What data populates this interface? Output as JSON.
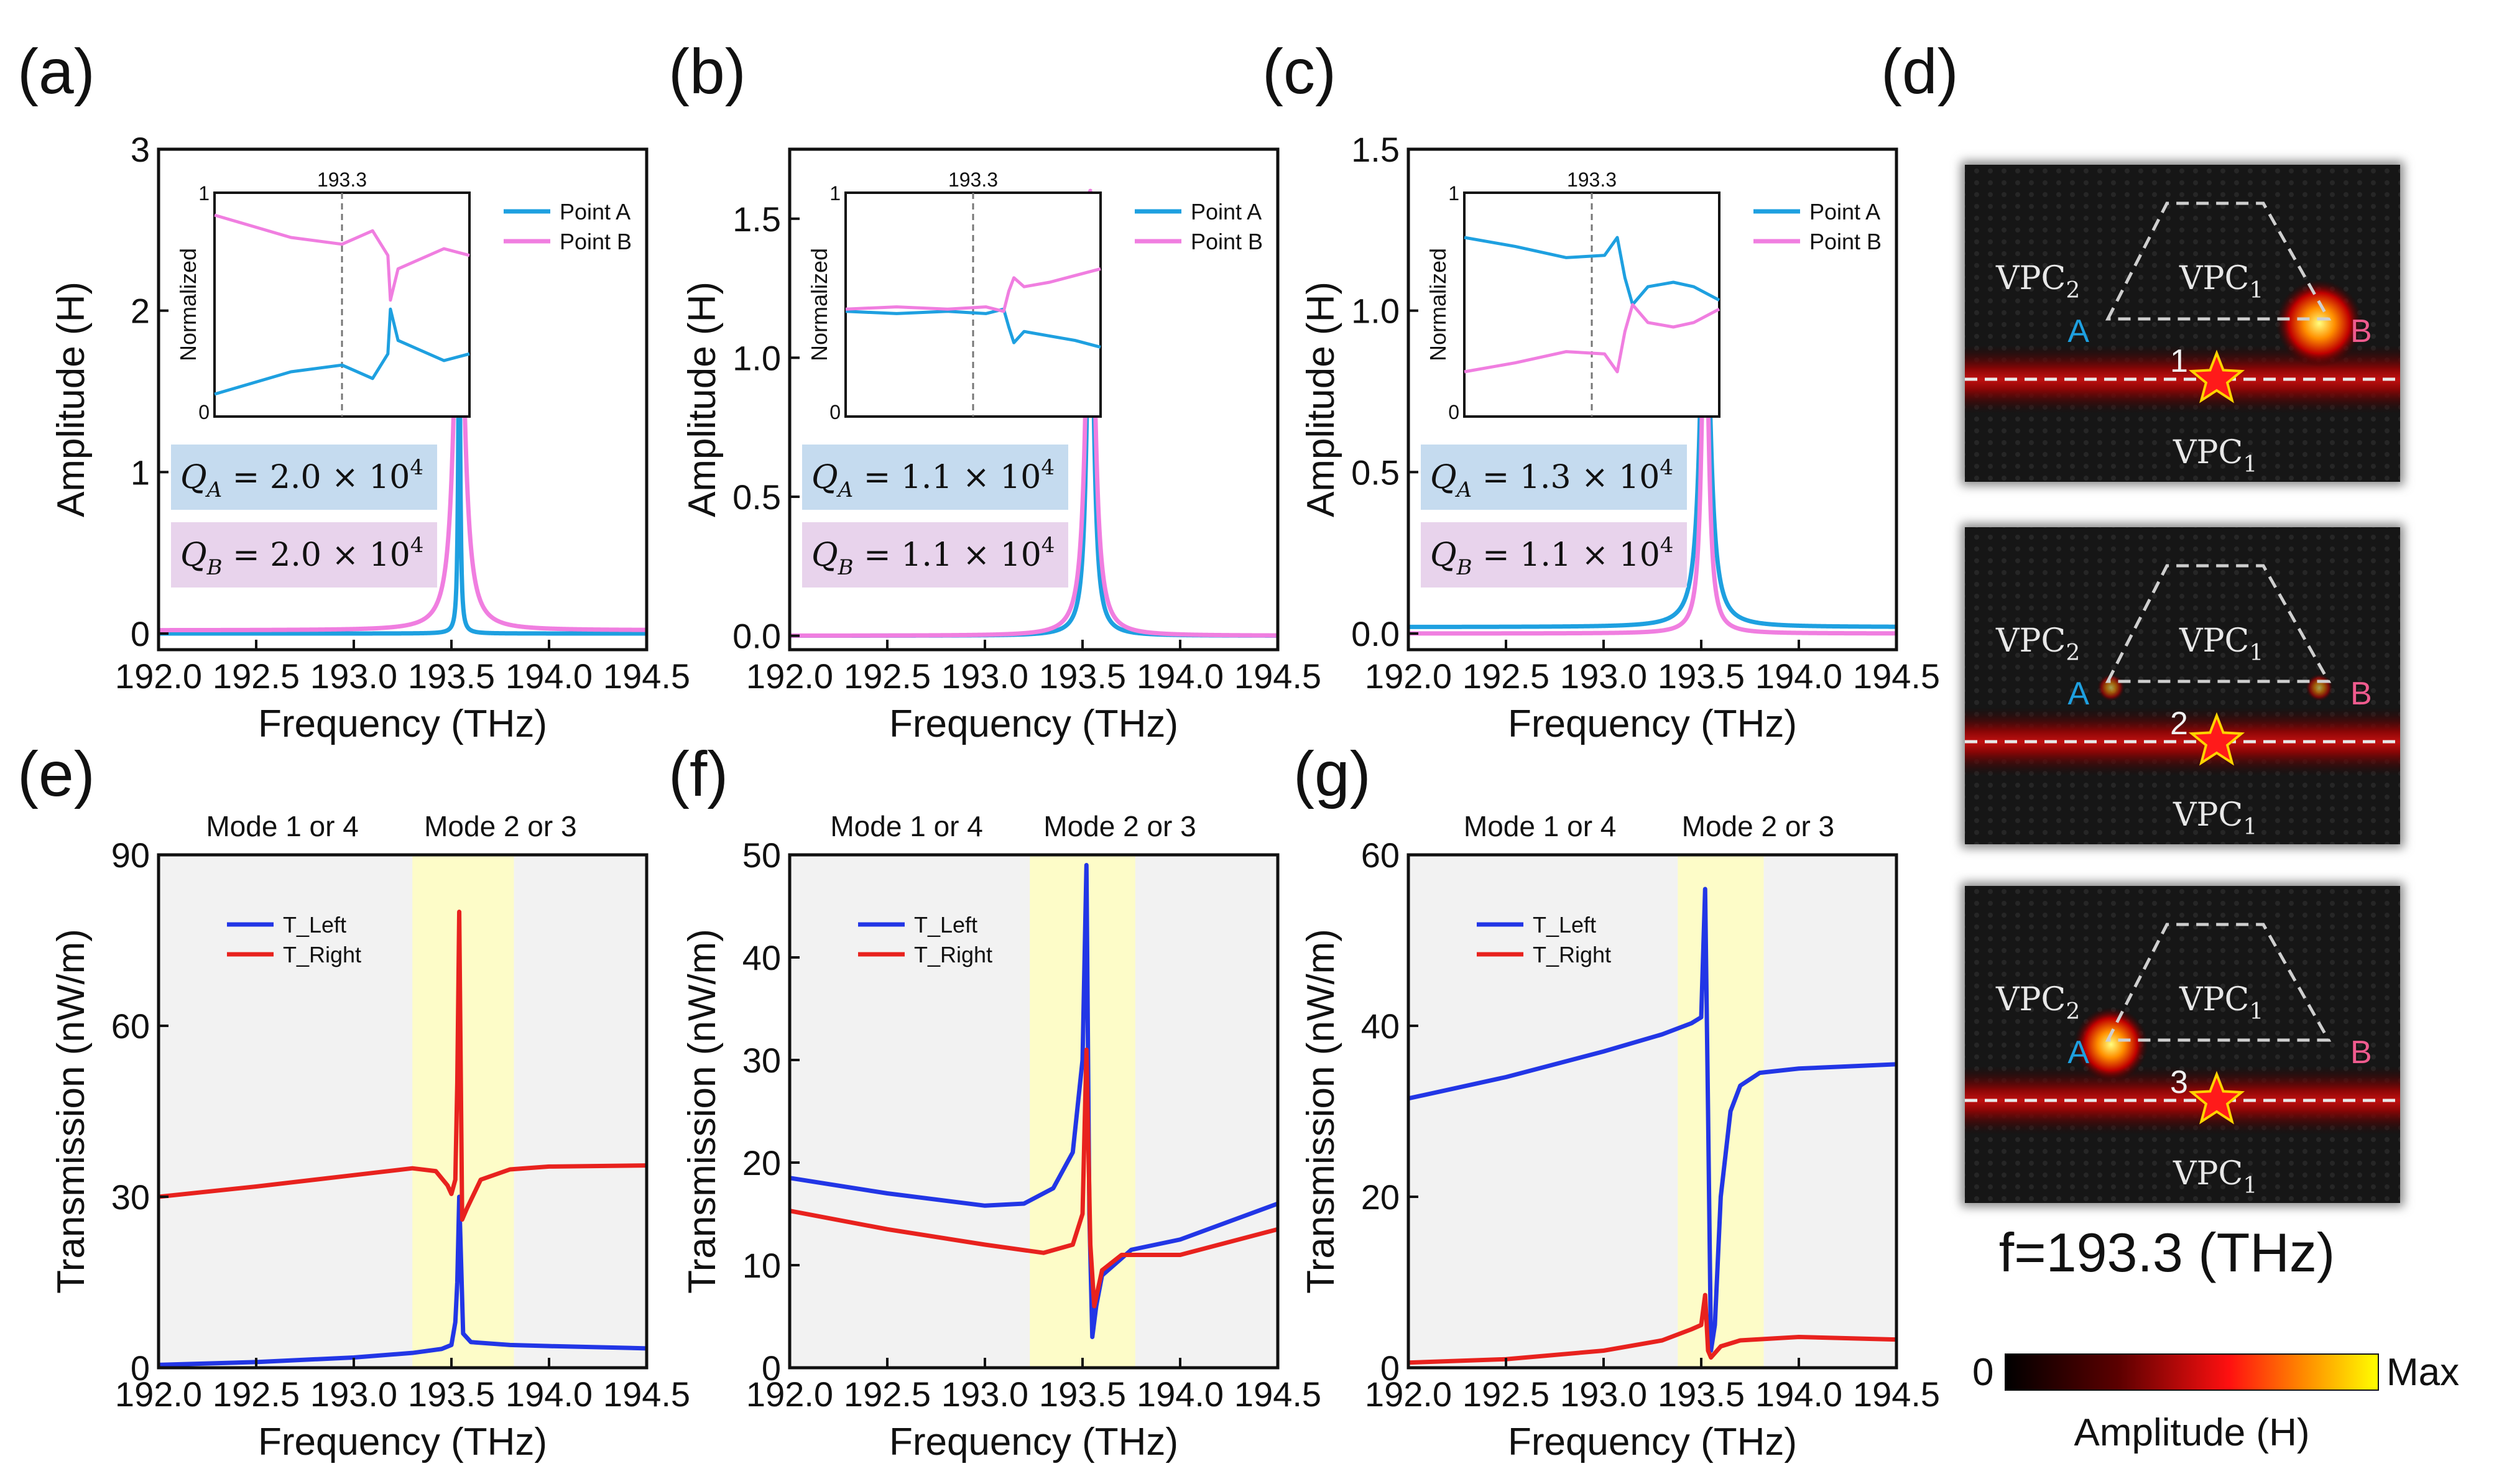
{
  "panel_labels": {
    "a": "(a)",
    "b": "(b)",
    "c": "(c)",
    "d": "(d)",
    "e": "(e)",
    "f": "(f)",
    "g": "(g)"
  },
  "colors": {
    "point_a": "#1ea0e0",
    "point_b": "#f07ee0",
    "t_left": "#2236e6",
    "t_right": "#e8221e",
    "q_a_box": "#c5dbef",
    "q_b_box": "#e8d3ec",
    "mode_band": "#fdfcc8",
    "bg_band": "#f2f2f2",
    "field_bg": "#161616"
  },
  "chart_data": [
    {
      "id": "a",
      "type": "line",
      "xlabel": "Frequency (THz)",
      "ylabel": "Amplitude (H)",
      "xlim": [
        192.0,
        194.5
      ],
      "ylim": [
        -0.1,
        3.0
      ],
      "xticks": [
        "192.0",
        "192.5",
        "193.0",
        "193.5",
        "194.0",
        "194.5"
      ],
      "yticks": [
        {
          "v": 0,
          "t": "0"
        },
        {
          "v": 1,
          "t": "1"
        },
        {
          "v": 2,
          "t": "2"
        },
        {
          "v": 3,
          "t": "3"
        }
      ],
      "legend": [
        "Point A",
        "Point B"
      ],
      "series": [
        {
          "name": "Point A",
          "f0": 193.54,
          "w": 0.006,
          "peak": 2.05,
          "base": 0.0
        },
        {
          "name": "Point B",
          "f0": 193.54,
          "w": 0.03,
          "peak": 2.6,
          "base": 0.02
        }
      ],
      "q_a": "Q_A = 2.0 × 10^4",
      "q_b": "Q_B = 2.0 × 10^4",
      "q_a_val": "2.0",
      "q_b_val": "2.0",
      "inset": {
        "ylabel": "Normalized",
        "yticks": [
          "0",
          "1"
        ],
        "marker": "193.3",
        "series": [
          {
            "name": "Point A",
            "x": [
              0,
              0.12,
              0.3,
              0.5,
              0.62,
              0.68,
              0.69,
              0.72,
              0.8,
              0.9,
              1.0
            ],
            "y": [
              0.1,
              0.14,
              0.2,
              0.23,
              0.17,
              0.28,
              0.48,
              0.34,
              0.3,
              0.25,
              0.28
            ]
          },
          {
            "name": "Point B",
            "x": [
              0,
              0.12,
              0.3,
              0.5,
              0.62,
              0.68,
              0.69,
              0.72,
              0.8,
              0.9,
              1.0
            ],
            "y": [
              0.9,
              0.86,
              0.8,
              0.77,
              0.83,
              0.72,
              0.52,
              0.66,
              0.7,
              0.75,
              0.72
            ]
          }
        ]
      }
    },
    {
      "id": "b",
      "type": "line",
      "xlabel": "Frequency (THz)",
      "ylabel": "Amplitude (H)",
      "xlim": [
        192.0,
        194.5
      ],
      "ylim": [
        -0.05,
        1.75
      ],
      "xticks": [
        "192.0",
        "192.5",
        "193.0",
        "193.5",
        "194.0",
        "194.5"
      ],
      "yticks": [
        {
          "v": 0,
          "t": "0.0"
        },
        {
          "v": 0.5,
          "t": "0.5"
        },
        {
          "v": 1.0,
          "t": "1.0"
        },
        {
          "v": 1.5,
          "t": "1.5"
        }
      ],
      "legend": [
        "Point A",
        "Point B"
      ],
      "series": [
        {
          "name": "Point A",
          "f0": 193.54,
          "w": 0.02,
          "peak": 1.45,
          "base": 0.0
        },
        {
          "name": "Point B",
          "f0": 193.54,
          "w": 0.026,
          "peak": 1.6,
          "base": 0.0
        }
      ],
      "q_a": "Q_A = 1.1 × 10^4",
      "q_b": "Q_B = 1.1 × 10^4",
      "q_a_val": "1.1",
      "q_b_val": "1.1",
      "inset": {
        "ylabel": "Normalized",
        "yticks": [
          "0",
          "1"
        ],
        "marker": "193.3",
        "series": [
          {
            "name": "Point A",
            "x": [
              0,
              0.2,
              0.4,
              0.55,
              0.62,
              0.64,
              0.66,
              0.7,
              0.8,
              0.9,
              1.0
            ],
            "y": [
              0.47,
              0.46,
              0.47,
              0.46,
              0.48,
              0.4,
              0.33,
              0.38,
              0.36,
              0.34,
              0.31
            ]
          },
          {
            "name": "Point B",
            "x": [
              0,
              0.2,
              0.4,
              0.55,
              0.62,
              0.64,
              0.66,
              0.7,
              0.8,
              0.9,
              1.0
            ],
            "y": [
              0.48,
              0.49,
              0.48,
              0.49,
              0.47,
              0.56,
              0.62,
              0.58,
              0.6,
              0.63,
              0.66
            ]
          }
        ]
      }
    },
    {
      "id": "c",
      "type": "line",
      "xlabel": "Frequency (THz)",
      "ylabel": "Amplitude (H)",
      "xlim": [
        192.0,
        194.5
      ],
      "ylim": [
        -0.05,
        1.5
      ],
      "xticks": [
        "192.0",
        "192.5",
        "193.0",
        "193.5",
        "194.0",
        "194.5"
      ],
      "yticks": [
        {
          "v": 0,
          "t": "0.0"
        },
        {
          "v": 0.5,
          "t": "0.5"
        },
        {
          "v": 1.0,
          "t": "1.0"
        },
        {
          "v": 1.5,
          "t": "1.5"
        }
      ],
      "legend": [
        "Point A",
        "Point B"
      ],
      "series": [
        {
          "name": "Point A",
          "f0": 193.52,
          "w": 0.028,
          "peak": 1.28,
          "base": 0.02
        },
        {
          "name": "Point B",
          "f0": 193.52,
          "w": 0.02,
          "peak": 1.14,
          "base": 0.0
        }
      ],
      "q_a": "Q_A = 1.3 × 10^4",
      "q_b": "Q_B = 1.1 × 10^4",
      "q_a_val": "1.3",
      "q_b_val": "1.1",
      "inset": {
        "ylabel": "Normalized",
        "yticks": [
          "0",
          "1"
        ],
        "marker": "193.3",
        "series": [
          {
            "name": "Point A",
            "x": [
              0,
              0.2,
              0.4,
              0.55,
              0.6,
              0.63,
              0.66,
              0.72,
              0.82,
              0.9,
              1.0
            ],
            "y": [
              0.8,
              0.76,
              0.71,
              0.72,
              0.8,
              0.62,
              0.5,
              0.58,
              0.6,
              0.58,
              0.52
            ]
          },
          {
            "name": "Point B",
            "x": [
              0,
              0.2,
              0.4,
              0.55,
              0.6,
              0.63,
              0.66,
              0.72,
              0.82,
              0.9,
              1.0
            ],
            "y": [
              0.2,
              0.24,
              0.29,
              0.28,
              0.2,
              0.38,
              0.5,
              0.42,
              0.4,
              0.42,
              0.48
            ]
          }
        ]
      }
    },
    {
      "id": "e",
      "type": "line",
      "xlabel": "Frequency (THz)",
      "ylabel": "Transmission (nW/m)",
      "xlim": [
        192.0,
        194.5
      ],
      "ylim": [
        0,
        90
      ],
      "xticks": [
        "192.0",
        "192.5",
        "193.0",
        "193.5",
        "194.0",
        "194.5"
      ],
      "yticks": [
        {
          "v": 0,
          "t": "0"
        },
        {
          "v": 30,
          "t": "30"
        },
        {
          "v": 60,
          "t": "60"
        },
        {
          "v": 90,
          "t": "90"
        }
      ],
      "legend": [
        "T_Left",
        "T_Right"
      ],
      "mode_labels": [
        "Mode 1 or 4",
        "Mode 2 or 3"
      ],
      "band": [
        193.3,
        193.82
      ],
      "series": [
        {
          "name": "T_Left",
          "x": [
            192.0,
            192.5,
            193.0,
            193.3,
            193.45,
            193.5,
            193.52,
            193.53,
            193.54,
            193.56,
            193.6,
            193.8,
            194.0,
            194.5
          ],
          "y": [
            0.5,
            1.0,
            1.8,
            2.6,
            3.3,
            4.0,
            8.0,
            15.0,
            30.0,
            6.0,
            4.5,
            4.0,
            3.8,
            3.4
          ]
        },
        {
          "name": "T_Right",
          "x": [
            192.0,
            192.5,
            193.0,
            193.3,
            193.42,
            193.48,
            193.5,
            193.52,
            193.53,
            193.54,
            193.555,
            193.58,
            193.65,
            193.8,
            194.0,
            194.5
          ],
          "y": [
            30.0,
            31.8,
            33.8,
            35.0,
            34.5,
            32.0,
            30.5,
            33.0,
            50.0,
            80.0,
            26.0,
            28.0,
            33.0,
            34.8,
            35.3,
            35.5
          ]
        }
      ]
    },
    {
      "id": "f",
      "type": "line",
      "xlabel": "Frequency (THz)",
      "ylabel": "Transmission (nW/m)",
      "xlim": [
        192.0,
        194.5
      ],
      "ylim": [
        0,
        50
      ],
      "xticks": [
        "192.0",
        "192.5",
        "193.0",
        "193.5",
        "194.0",
        "194.5"
      ],
      "yticks": [
        {
          "v": 0,
          "t": "0"
        },
        {
          "v": 10,
          "t": "10"
        },
        {
          "v": 20,
          "t": "20"
        },
        {
          "v": 30,
          "t": "30"
        },
        {
          "v": 40,
          "t": "40"
        },
        {
          "v": 50,
          "t": "50"
        }
      ],
      "legend": [
        "T_Left",
        "T_Right"
      ],
      "mode_labels": [
        "Mode 1 or 4",
        "Mode 2 or 3"
      ],
      "band": [
        193.23,
        193.77
      ],
      "series": [
        {
          "name": "T_Left",
          "x": [
            192.0,
            192.5,
            193.0,
            193.2,
            193.35,
            193.45,
            193.5,
            193.52,
            193.535,
            193.55,
            193.57,
            193.6,
            193.75,
            194.0,
            194.5
          ],
          "y": [
            18.5,
            17.0,
            15.8,
            16.0,
            17.5,
            21.0,
            30.0,
            49.0,
            15.0,
            3.0,
            6.0,
            9.0,
            11.5,
            12.5,
            16.0
          ]
        },
        {
          "name": "T_Right",
          "x": [
            192.0,
            192.5,
            193.0,
            193.3,
            193.45,
            193.5,
            193.52,
            193.54,
            193.56,
            193.6,
            193.7,
            194.0,
            194.5
          ],
          "y": [
            15.3,
            13.5,
            12.0,
            11.2,
            12.0,
            15.0,
            31.0,
            12.0,
            6.0,
            9.5,
            11.0,
            11.0,
            13.5
          ]
        }
      ]
    },
    {
      "id": "g",
      "type": "line",
      "xlabel": "Frequency (THz)",
      "ylabel": "Transmission (nW/m)",
      "xlim": [
        192.0,
        194.5
      ],
      "ylim": [
        0,
        60
      ],
      "xticks": [
        "192.0",
        "192.5",
        "193.0",
        "193.5",
        "194.0",
        "194.5"
      ],
      "yticks": [
        {
          "v": 0,
          "t": "0"
        },
        {
          "v": 20,
          "t": "20"
        },
        {
          "v": 40,
          "t": "40"
        },
        {
          "v": 60,
          "t": "60"
        }
      ],
      "legend": [
        "T_Left",
        "T_Right"
      ],
      "mode_labels": [
        "Mode 1 or 4",
        "Mode 2 or 3"
      ],
      "band": [
        193.38,
        193.82
      ],
      "series": [
        {
          "name": "T_Left",
          "x": [
            192.0,
            192.5,
            193.0,
            193.3,
            193.45,
            193.5,
            193.52,
            193.535,
            193.55,
            193.57,
            193.6,
            193.65,
            193.7,
            193.8,
            194.0,
            194.5
          ],
          "y": [
            31.5,
            34.0,
            37.0,
            39.0,
            40.3,
            41.0,
            56.0,
            30.0,
            2.0,
            5.0,
            20.0,
            30.0,
            33.0,
            34.5,
            35.0,
            35.5
          ]
        },
        {
          "name": "T_Right",
          "x": [
            192.0,
            192.5,
            193.0,
            193.3,
            193.45,
            193.5,
            193.52,
            193.535,
            193.55,
            193.6,
            193.7,
            194.0,
            194.5
          ],
          "y": [
            0.6,
            1.0,
            2.0,
            3.2,
            4.5,
            5.0,
            8.5,
            2.0,
            1.2,
            2.5,
            3.2,
            3.6,
            3.3
          ]
        }
      ]
    }
  ],
  "field_maps": [
    {
      "labels": {
        "vpc2": "VPC",
        "vpc1_top": "VPC",
        "vpc1_bot": "VPC",
        "sub2": "2",
        "sub1": "1",
        "a": "A",
        "b": "B"
      },
      "star_num": "1",
      "hot": "B"
    },
    {
      "labels": {
        "vpc2": "VPC",
        "vpc1_top": "VPC",
        "vpc1_bot": "VPC",
        "sub2": "2",
        "sub1": "1",
        "a": "A",
        "b": "B"
      },
      "star_num": "2",
      "hot": "none"
    },
    {
      "labels": {
        "vpc2": "VPC",
        "vpc1_top": "VPC",
        "vpc1_bot": "VPC",
        "sub2": "2",
        "sub1": "1",
        "a": "A",
        "b": "B"
      },
      "star_num": "3",
      "hot": "A"
    }
  ],
  "field_caption": "f=193.3 (THz)",
  "colorbar": {
    "min": "0",
    "max": "Max",
    "label": "Amplitude (H)"
  }
}
